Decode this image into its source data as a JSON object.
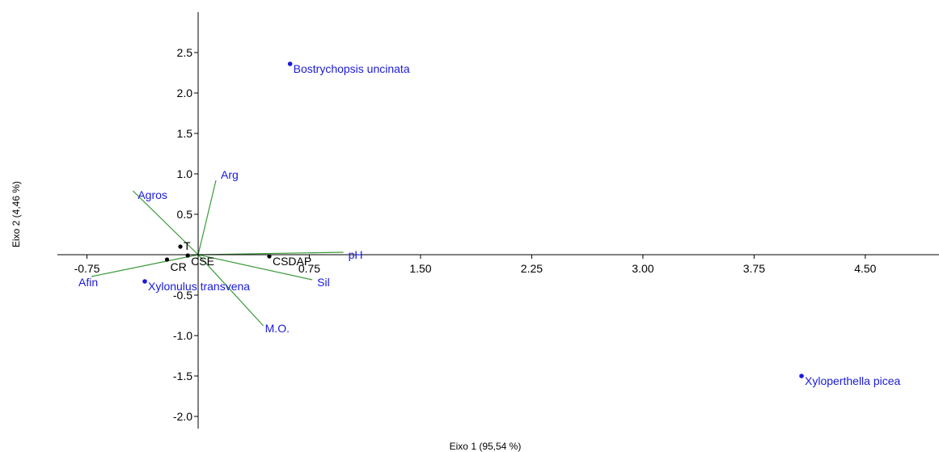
{
  "chart_data": {
    "type": "scatter",
    "subtype": "ordination-biplot",
    "title": "",
    "xlabel": "Eixo 1 (95,54 %)",
    "ylabel": "Eixo 2 (4,46 %)",
    "xlim": [
      -0.95,
      5.0
    ],
    "ylim": [
      -2.15,
      3.0
    ],
    "x_ticks": [
      {
        "v": -0.75,
        "label": "-0.75"
      },
      {
        "v": 0.75,
        "label": "0.75"
      },
      {
        "v": 1.5,
        "label": "1.50"
      },
      {
        "v": 2.25,
        "label": "2.25"
      },
      {
        "v": 3.0,
        "label": "3.00"
      },
      {
        "v": 3.75,
        "label": "3.75"
      },
      {
        "v": 4.5,
        "label": "4.50"
      }
    ],
    "y_ticks": [
      {
        "v": 2.5,
        "label": "2.5"
      },
      {
        "v": 2.0,
        "label": "2.0"
      },
      {
        "v": 1.5,
        "label": "1.5"
      },
      {
        "v": 1.0,
        "label": "1.0"
      },
      {
        "v": 0.5,
        "label": "0.5"
      },
      {
        "v": -0.5,
        "label": "-0.5"
      },
      {
        "v": -1.0,
        "label": "-1.0"
      },
      {
        "v": -1.5,
        "label": "-1.5"
      },
      {
        "v": -2.0,
        "label": "-2.0"
      }
    ],
    "grid": false,
    "colors": {
      "species": "#1a1adb",
      "vectors": "#3a9a3a",
      "sites": "#000000",
      "axis": "#000000"
    },
    "species_points": [
      {
        "label": "Bostrychopsis uncinata",
        "x": 0.62,
        "y": 2.36
      },
      {
        "label": "Xylonulus transvena",
        "x": -0.36,
        "y": -0.33
      },
      {
        "label": "Xyloperthella picea",
        "x": 4.07,
        "y": -1.5
      }
    ],
    "site_points": [
      {
        "label": "T",
        "x": -0.12,
        "y": 0.1
      },
      {
        "label": "CR",
        "x": -0.21,
        "y": -0.06
      },
      {
        "label": "CSE",
        "x": -0.07,
        "y": -0.01
      },
      {
        "label": "CSDAP",
        "x": 0.48,
        "y": -0.02
      }
    ],
    "vectors": [
      {
        "label": "Agros",
        "x": -0.44,
        "y": 0.79
      },
      {
        "label": "Arg",
        "x": 0.12,
        "y": 0.92
      },
      {
        "label": "pH",
        "x": 0.98,
        "y": 0.03
      },
      {
        "label": "Sil",
        "x": 0.77,
        "y": -0.31
      },
      {
        "label": "M.O.",
        "x": 0.44,
        "y": -0.88
      },
      {
        "label": "Afin",
        "x": -0.72,
        "y": -0.27
      }
    ]
  }
}
